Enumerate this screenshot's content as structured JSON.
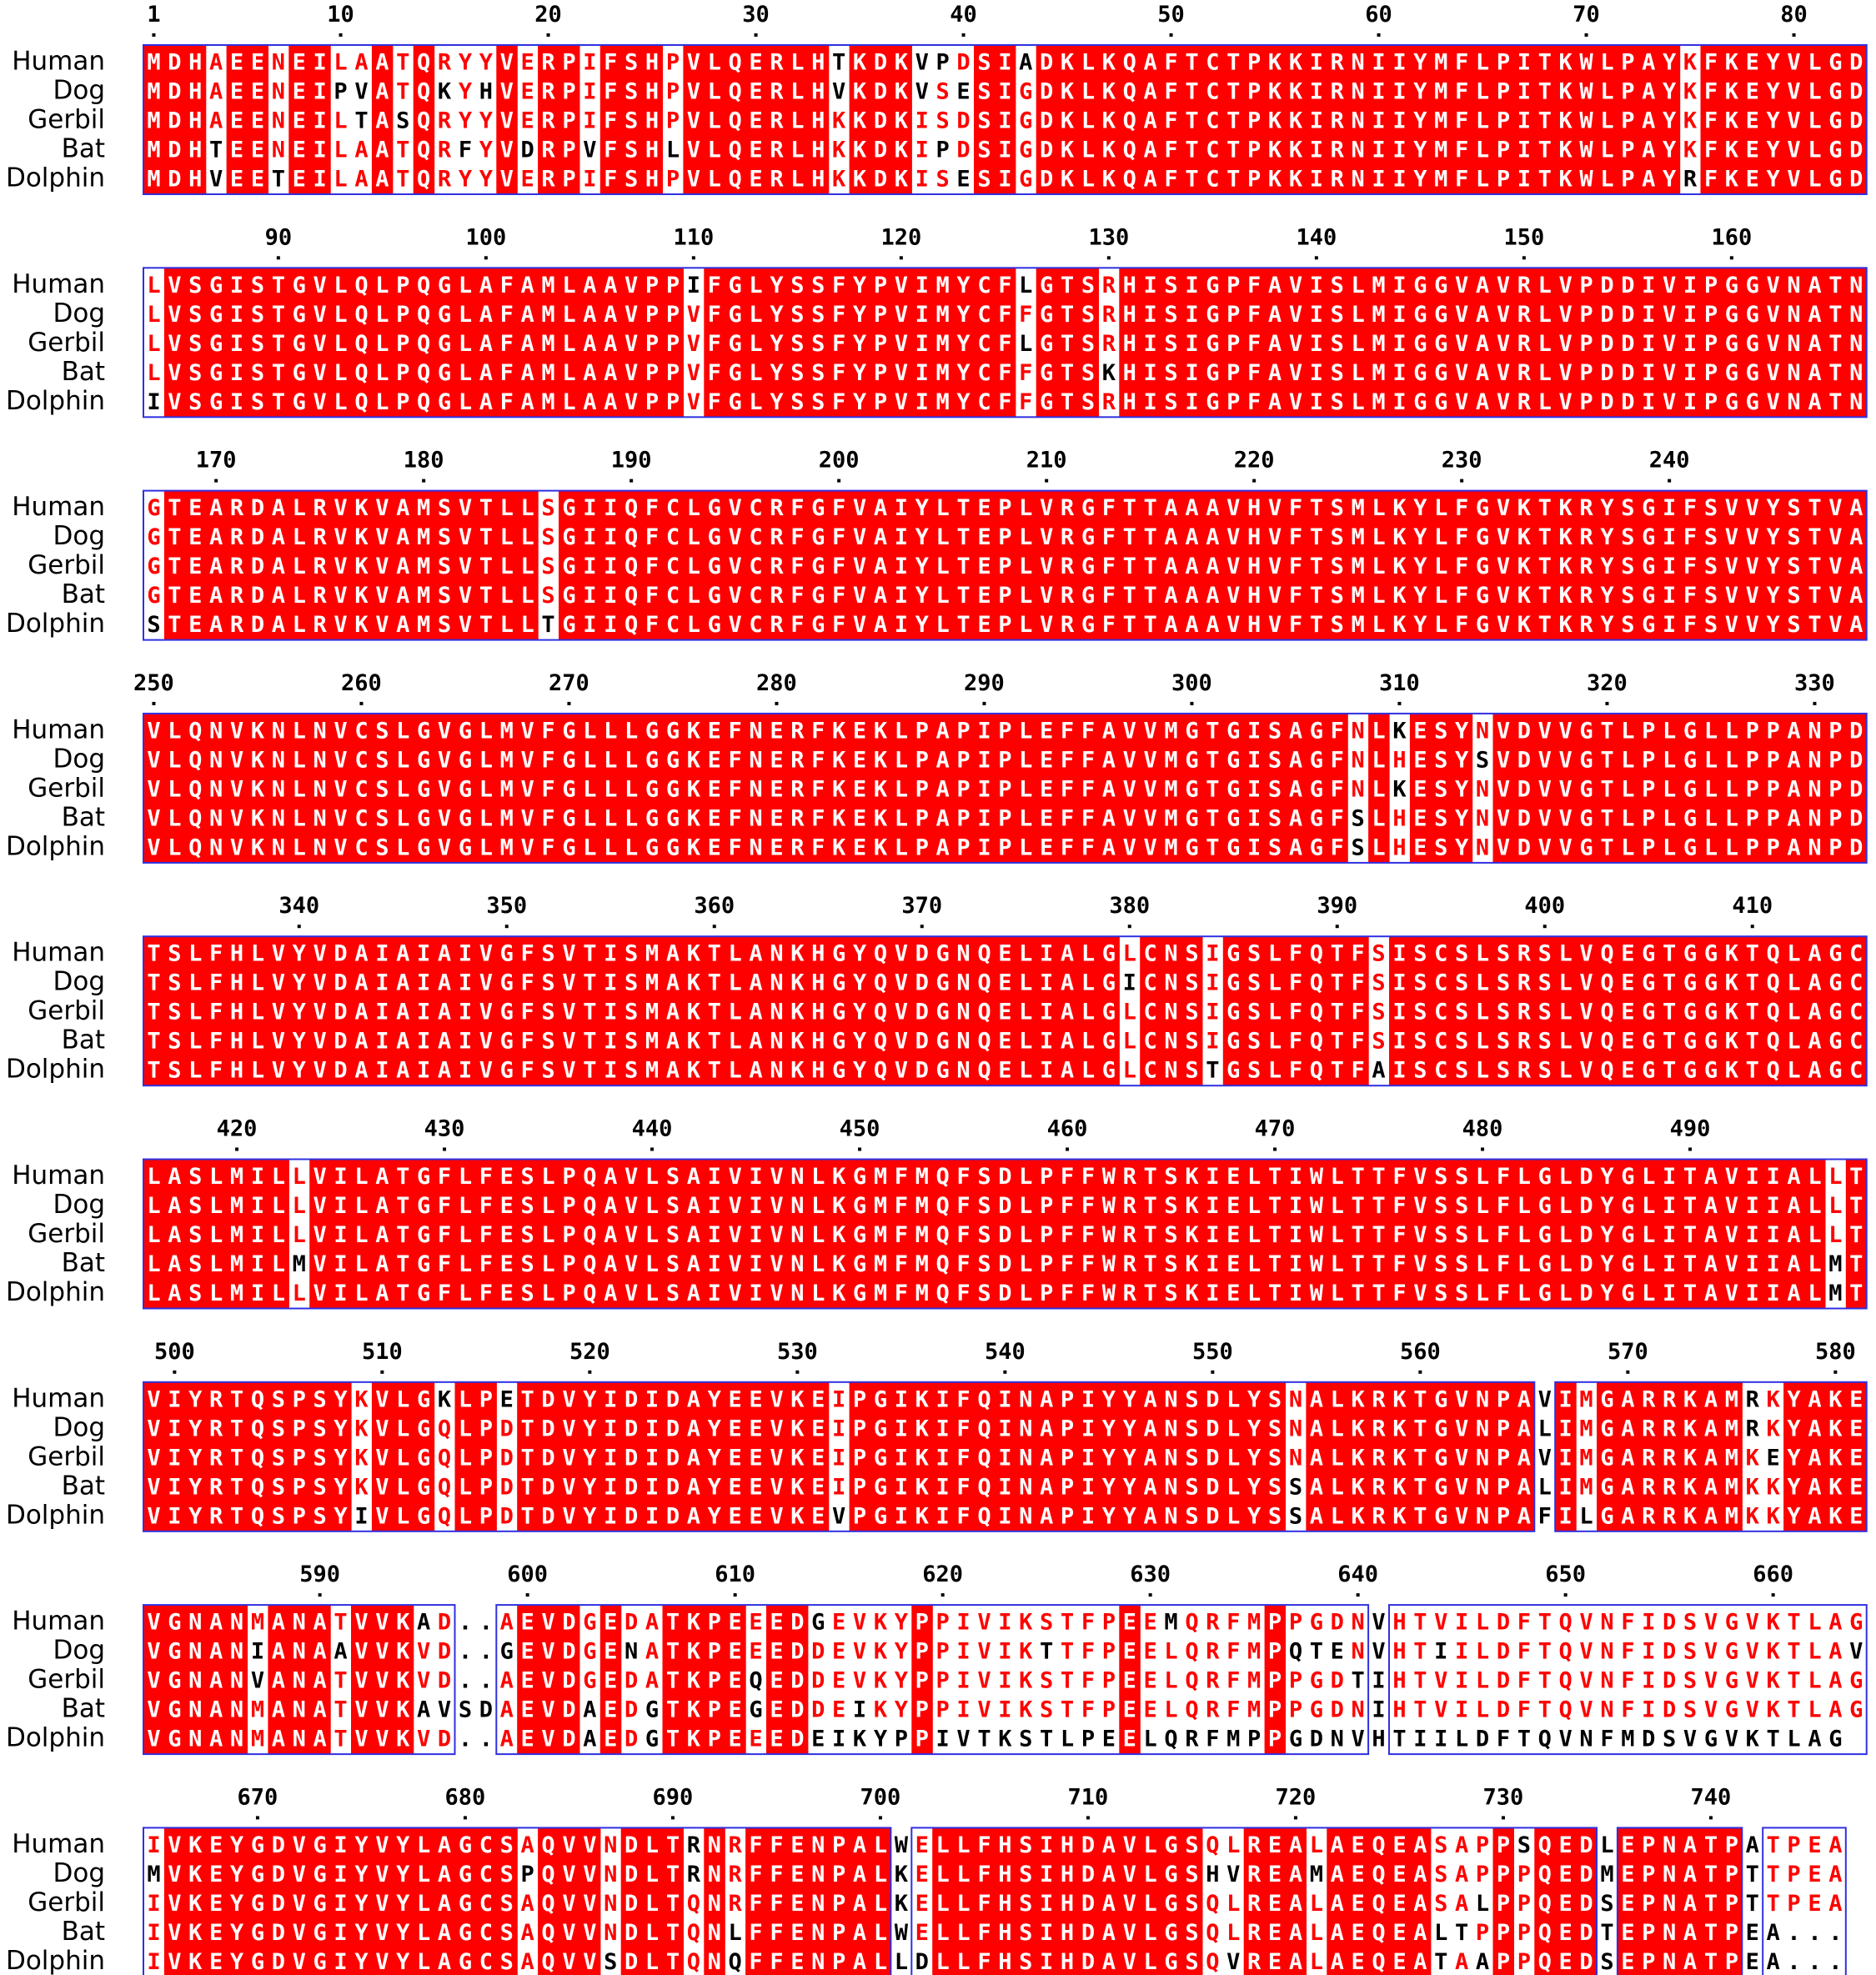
{
  "species": [
    "Human",
    "Dog",
    "Gerbil",
    "Bat",
    "Dolphin"
  ],
  "colors": {
    "identical_bg": "#ff0000",
    "identical_fg": "#ffffff",
    "similar_fg": "#ff0000",
    "box": "#3030e0",
    "other_fg": "#000000"
  },
  "blocks": [
    {
      "start": 1,
      "ticks": [
        "1",
        "10",
        "20",
        "30",
        "40",
        "50",
        "60",
        "70",
        "80"
      ],
      "seqs": [
        "MDHAEENEILAATQRYYVERPIFSHPVLQERLHTKDKVPDSIADKLKQAFTCTPKKIRNIIYMFLPITKWLPAYKFKEYVLGD",
        "MDHAEENEIPVATQKYHVERPIFSHPVLQERLHVKDKVSESIGDKLKQAFTCTPKKIRNIIYMFLPITKWLPAYKFKEYVLGD",
        "MDHAEENEILTASQRYYVERPIFSHPVLQERLHKKDKISDSIGDKLKQAFTCTPKKIRNIIYMFLPITKWLPAYKFKEYVLGD",
        "MDHTEENEILAATQRFYVDRPVFSHLVLQERLHKKDKIPDSIGDKLKQAFTCTPKKIRNIIYMFLPITKWLPAYKFKEYVLGD",
        "MDHVEETEILAATQRYYVERPIFSHPVLQERLHKKDKISESIGDKLKQAFTCTPKKIRNIIYMFLPITKWLPAYRFKEYVLGD"
      ]
    },
    {
      "start": 84,
      "ticks": [
        "90",
        "100",
        "110",
        "120",
        "130",
        "140",
        "150",
        "160"
      ],
      "seqs": [
        "LVSGISTGVLQLPQGLAFAMLAAVPPIFGLYSSFYPVIMYCFLGTSRHISIGPFAVISLMIGGVAVRLVPDDIVIPGGVNATN",
        "LVSGISTGVLQLPQGLAFAMLAAVPPVFGLYSSFYPVIMYCFFGTSRHISIGPFAVISLMIGGVAVRLVPDDIVIPGGVNATN",
        "LVSGISTGVLQLPQGLAFAMLAAVPPVFGLYSSFYPVIMYCFLGTSRHISIGPFAVISLMIGGVAVRLVPDDIVIPGGVNATN",
        "LVSGISTGVLQLPQGLAFAMLAAVPPVFGLYSSFYPVIMYCFFGTSKHISIGPFAVISLMIGGVAVRLVPDDIVIPGGVNATN",
        "IVSGISTGVLQLPQGLAFAMLAAVPPVFGLYSSFYPVIMYCFFGTSRHISIGPFAVISLMIGGVAVRLVPDDIVIPGGVNATN"
      ]
    },
    {
      "start": 167,
      "ticks": [
        "170",
        "180",
        "190",
        "200",
        "210",
        "220",
        "230",
        "240"
      ],
      "seqs": [
        "GTEARDALRVKVAMSVTLLSGIIQFCLGVCRFGFVAIYLTEPLVRGFTTAAAVHVFTSMLKYLFGVKTKRYSGIFSVVYSTVA",
        "GTEARDALRVKVAMSVTLLSGIIQFCLGVCRFGFVAIYLTEPLVRGFTTAAAVHVFTSMLKYLFGVKTKRYSGIFSVVYSTVA",
        "GTEARDALRVKVAMSVTLLSGIIQFCLGVCRFGFVAIYLTEPLVRGFTTAAAVHVFTSMLKYLFGVKTKRYSGIFSVVYSTVA",
        "GTEARDALRVKVAMSVTLLSGIIQFCLGVCRFGFVAIYLTEPLVRGFTTAAAVHVFTSMLKYLFGVKTKRYSGIFSVVYSTVA",
        "STEARDALRVKVAMSVTLLTGIIQFCLGVCRFGFVAIYLTEPLVRGFTTAAAVHVFTSMLKYLFGVKTKRYSGIFSVVYSTVA"
      ]
    },
    {
      "start": 250,
      "ticks": [
        "250",
        "260",
        "270",
        "280",
        "290",
        "300",
        "310",
        "320",
        "330"
      ],
      "seqs": [
        "VLQNVKNLNVCSLGVGLMVFGLLLGGKEFNERFKEKLPAPIPLEFFAVVMGTGISAGFNLKESYNVDVVGTLPLGLLPPANPD",
        "VLQNVKNLNVCSLGVGLMVFGLLLGGKEFNERFKEKLPAPIPLEFFAVVMGTGISAGFNLHESYSVDVVGTLPLGLLPPANPD",
        "VLQNVKNLNVCSLGVGLMVFGLLLGGKEFNERFKEKLPAPIPLEFFAVVMGTGISAGFNLKESYNVDVVGTLPLGLLPPANPD",
        "VLQNVKNLNVCSLGVGLMVFGLLLGGKEFNERFKEKLPAPIPLEFFAVVMGTGISAGFSLHESYNVDVVGTLPLGLLPPANPD",
        "VLQNVKNLNVCSLGVGLMVFGLLLGGKEFNERFKEKLPAPIPLEFFAVVMGTGISAGFSLHESYNVDVVGTLPLGLLPPANPD"
      ]
    },
    {
      "start": 333,
      "ticks": [
        "340",
        "350",
        "360",
        "370",
        "380",
        "390",
        "400",
        "410"
      ],
      "seqs": [
        "TSLFHLVYVDAIAIAIVGFSVTISMAKTLANKHGYQVDGNQELIALGLCNSIGSLFQTFSISCSLSRSLVQEGTGGKTQLAGC",
        "TSLFHLVYVDAIAIAIVGFSVTISMAKTLANKHGYQVDGNQELIALGICNSIGSLFQTFSISCSLSRSLVQEGTGGKTQLAGC",
        "TSLFHLVYVDAIAIAIVGFSVTISMAKTLANKHGYQVDGNQELIALGLCNSIGSLFQTFSISCSLSRSLVQEGTGGKTQLAGC",
        "TSLFHLVYVDAIAIAIVGFSVTISMAKTLANKHGYQVDGNQELIALGLCNSIGSLFQTFSISCSLSRSLVQEGTGGKTQLAGC",
        "TSLFHLVYVDAIAIAIVGFSVTISMAKTLANKHGYQVDGNQELIALGLCNSTGSLFQTFAISCSLSRSLVQEGTGGKTQLAGC"
      ]
    },
    {
      "start": 416,
      "ticks": [
        "420",
        "430",
        "440",
        "450",
        "460",
        "470",
        "480",
        "490"
      ],
      "seqs": [
        "LASLMILLVILATGFLFESLPQAVLSAIVIVNLKGMFMQFSDLPFFWRTSKIELTIWLTTFVSSLFLGLDYGLITAVIIALLT",
        "LASLMILLVILATGFLFESLPQAVLSAIVIVNLKGMFMQFSDLPFFWRTSKIELTIWLTTFVSSLFLGLDYGLITAVIIALLT",
        "LASLMILLVILATGFLFESLPQAVLSAIVIVNLKGMFMQFSDLPFFWRTSKIELTIWLTTFVSSLFLGLDYGLITAVIIALLT",
        "LASLMILMVILATGFLFESLPQAVLSAIVIVNLKGMFMQFSDLPFFWRTSKIELTIWLTTFVSSLFLGLDYGLITAVIIALMT",
        "LASLMILLVILATGFLFESLPQAVLSAIVIVNLKGMFMQFSDLPFFWRTSKIELTIWLTTFVSSLFLGLDYGLITAVIIALMT"
      ]
    },
    {
      "start": 499,
      "ticks": [
        "500",
        "510",
        "520",
        "530",
        "540",
        "550",
        "560",
        "570",
        "580"
      ],
      "seqs": [
        "VIYRTQSPSYKVLGKLPETDVYIDIDAYEEVKEIPGIKIFQINAPIYYANSDLYSNALKRKTGVNPAVIMGARRKAMRKYAKE",
        "VIYRTQSPSYKVLGQLPDTDVYIDIDAYEEVKEIPGIKIFQINAPIYYANSDLYSNALKRKTGVNPALIMGARRKAMRKYAKE",
        "VIYRTQSPSYKVLGQLPDTDVYIDIDAYEEVKEIPGIKIFQINAPIYYANSDLYSNALKRKTGVNPAVIMGARRKAMKEYAKE",
        "VIYRTQSPSYKVLGQLPDTDVYIDIDAYEEVKEIPGIKIFQINAPIYYANSDLYSSALKRKTGVNPALIMGARRKAMKKYAKE",
        "VIYRTQSPSYIVLGQLPDTDVYIDIDAYEEVKEVPGIKIFQINAPIYYANSDLYSSALKRKTGVNPAFILGARRKAMKKYAKE"
      ]
    },
    {
      "start": 582,
      "ticks": [
        "590",
        "600",
        "610",
        "620",
        "630",
        "640",
        "650",
        "660"
      ],
      "seqs": [
        "VGNANMANATVVKAD..AEVDGEDATKPEEEDGEVKYPPIVIKSTFPEEMQRFMPPGDNVHTVILDFTQVNFIDSVGVKTLAG",
        "VGNANIANAAVVKVD..GEVDGENATKPEEEDDEVKYPPIVIKTTFPEELQRFMPQTENVHTIILDFTQVNFIDSVGVKTLAV",
        "VGNANVANATVVKVD..AEVDGEDATKPEQEDDEVKYPPIVIKSTFPEELQRFMPPGDTIHTVILDFTQVNFIDSVGVKTLAG",
        "VGNANMANATVVKAVSDAEVDAEDGTKPEGEDDEIKYPPIVIKSTFPEELQRFMPPGDNIHTVILDFTQVNFIDSVGVKTLAG",
        "VGNANMANATVVKVD..AEVDAEDGTKPEEEDEIKYPPIVTKSTLPEELQRFMPPGDNVHTIILDFTQVNFMDSVGVKTLAG"
      ]
    },
    {
      "start": 665,
      "ticks": [
        "670",
        "680",
        "690",
        "700",
        "710",
        "720",
        "730",
        "740"
      ],
      "seqs": [
        "IVKEYGDVGIYVYLAGCSAQVVNDLTRNRFFENPALWELLFHSIHDAVLGSQLREALAEQEASAPPSQEDLEPNATPATPEA",
        "MVKEYGDVGIYVYLAGCSPQVVNDLTRNRFFENPALKELLFHSIHDAVLGSHVREAMAEQEASAPPPQEDMEPNATPTTPEA",
        "IVKEYGDVGIYVYLAGCSAQVVNDLTQNRFFENPALKELLFHSIHDAVLGSQLREALAEQEASALPPQEDSEPNATPTTPEA",
        "IVKEYGDVGIYVYLAGCSAQVVNDLTQNLFFENPALWELLFHSIHDAVLGSQLREALAEQEALTPPPQEDTEPNATPEA...",
        "IVKEYGDVGIYVYLAGCSAQVVSDLTQNQFFENPALLDLLFHSIHDAVLGSQVREALAEQEATAAPPQEDSEPNATPEA..."
      ]
    }
  ]
}
